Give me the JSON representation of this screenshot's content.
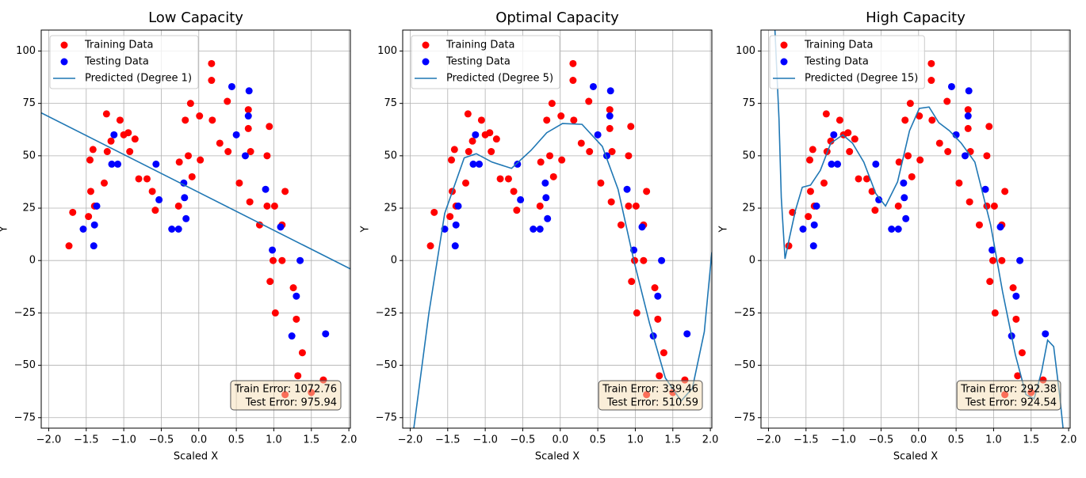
{
  "chart_data": [
    {
      "type": "scatter",
      "title": "Low Capacity",
      "xlabel": "Scaled X",
      "ylabel": "Y",
      "xlim": [
        -2.1,
        2.02
      ],
      "ylim": [
        -80,
        110
      ],
      "xticks": [
        {
          "value": -2,
          "label": "−2.0"
        },
        {
          "value": -1.5,
          "label": "−1.5"
        },
        {
          "value": -1,
          "label": "−1.0"
        },
        {
          "value": -0.5,
          "label": "−0.5"
        },
        {
          "value": 0,
          "label": "0.0"
        },
        {
          "value": 0.5,
          "label": "0.5"
        },
        {
          "value": 1,
          "label": "1.0"
        },
        {
          "value": 1.5,
          "label": "1.5"
        },
        {
          "value": 2,
          "label": "2.0"
        }
      ],
      "yticks": [
        {
          "value": -75,
          "label": "−75"
        },
        {
          "value": -50,
          "label": "−50"
        },
        {
          "value": -25,
          "label": "−25"
        },
        0,
        25,
        50,
        75,
        100
      ],
      "grid": true,
      "legend": "upper left",
      "series": [
        {
          "name": "Training Data",
          "color": "#ff0000",
          "kind": "points",
          "x": [
            -1.73,
            -1.68,
            -1.47,
            -1.45,
            -1.44,
            -1.41,
            -1.39,
            -1.26,
            -1.23,
            -1.22,
            -1.17,
            -1.05,
            -1.0,
            -0.94,
            -0.92,
            -0.85,
            -0.8,
            -0.69,
            -0.62,
            -0.58,
            -0.27,
            -0.26,
            -0.18,
            -0.14,
            -0.11,
            -0.09,
            0.01,
            0.02,
            0.17,
            0.17,
            0.18,
            0.28,
            0.38,
            0.39,
            0.54,
            0.66,
            0.66,
            0.68,
            0.69,
            0.81,
            0.91,
            0.94,
            0.95,
            0.91,
            0.99,
            1.01,
            1.02,
            1.11,
            1.15,
            1.11,
            1.15,
            1.26,
            1.3,
            1.32,
            1.38,
            1.5,
            1.66
          ],
          "values": [
            7,
            23,
            21,
            48,
            33,
            53,
            26,
            37,
            70,
            52,
            57,
            67,
            60,
            61,
            52,
            58,
            39,
            39,
            33,
            24,
            26,
            47,
            67,
            50,
            75,
            40,
            69,
            48,
            94,
            86,
            67,
            56,
            76,
            52,
            37,
            72,
            63,
            28,
            52,
            17,
            50,
            64,
            -10,
            26,
            0,
            26,
            -25,
            0,
            33,
            17,
            -64,
            -13,
            -28,
            -55,
            -44,
            -63,
            -57
          ]
        },
        {
          "name": "Testing Data",
          "color": "#0000ff",
          "kind": "points",
          "x": [
            -1.54,
            -1.4,
            -1.39,
            -1.36,
            -1.13,
            -1.16,
            -1.08,
            -0.57,
            -0.53,
            -0.36,
            -0.27,
            -0.2,
            -0.19,
            -0.17,
            0.44,
            0.5,
            0.62,
            0.66,
            0.67,
            0.89,
            0.98,
            1.09,
            1.24,
            1.3,
            1.35,
            1.69
          ],
          "values": [
            15,
            7,
            17,
            26,
            60,
            46,
            46,
            46,
            29,
            15,
            15,
            37,
            30,
            20,
            83,
            60,
            50,
            69,
            81,
            34,
            5,
            16,
            -36,
            -17,
            0,
            -35
          ]
        },
        {
          "name": "Predicted (Degree 1)",
          "color": "#1f77b4",
          "kind": "line",
          "x": [
            -2.1,
            2.02
          ],
          "values": [
            70.5,
            -4
          ]
        }
      ],
      "annotations": [
        "Train Error: 1072.76",
        "Test Error: 975.94"
      ]
    },
    {
      "type": "scatter",
      "title": "Optimal Capacity",
      "xlabel": "Scaled X",
      "ylabel": "Y",
      "xlim": [
        -2.1,
        2.02
      ],
      "ylim": [
        -80,
        110
      ],
      "xticks": [
        {
          "value": -2,
          "label": "−2.0"
        },
        {
          "value": -1.5,
          "label": "−1.5"
        },
        {
          "value": -1,
          "label": "−1.0"
        },
        {
          "value": -0.5,
          "label": "−0.5"
        },
        {
          "value": 0,
          "label": "0.0"
        },
        {
          "value": 0.5,
          "label": "0.5"
        },
        {
          "value": 1,
          "label": "1.0"
        },
        {
          "value": 1.5,
          "label": "1.5"
        },
        {
          "value": 2,
          "label": "2.0"
        }
      ],
      "yticks": [
        {
          "value": -75,
          "label": "−75"
        },
        {
          "value": -50,
          "label": "−50"
        },
        {
          "value": -25,
          "label": "−25"
        },
        0,
        25,
        50,
        75,
        100
      ],
      "grid": true,
      "legend": "upper left",
      "series": [
        {
          "name": "Training Data",
          "color": "#ff0000",
          "kind": "points",
          "x": [
            -1.73,
            -1.68,
            -1.47,
            -1.45,
            -1.44,
            -1.41,
            -1.39,
            -1.26,
            -1.23,
            -1.22,
            -1.17,
            -1.05,
            -1.0,
            -0.94,
            -0.92,
            -0.85,
            -0.8,
            -0.69,
            -0.62,
            -0.58,
            -0.27,
            -0.26,
            -0.18,
            -0.14,
            -0.11,
            -0.09,
            0.01,
            0.02,
            0.17,
            0.17,
            0.18,
            0.28,
            0.38,
            0.39,
            0.54,
            0.66,
            0.66,
            0.68,
            0.69,
            0.81,
            0.91,
            0.94,
            0.95,
            0.91,
            0.99,
            1.01,
            1.02,
            1.11,
            1.15,
            1.11,
            1.15,
            1.26,
            1.3,
            1.32,
            1.38,
            1.5,
            1.66
          ],
          "values": [
            7,
            23,
            21,
            48,
            33,
            53,
            26,
            37,
            70,
            52,
            57,
            67,
            60,
            61,
            52,
            58,
            39,
            39,
            33,
            24,
            26,
            47,
            67,
            50,
            75,
            40,
            69,
            48,
            94,
            86,
            67,
            56,
            76,
            52,
            37,
            72,
            63,
            28,
            52,
            17,
            50,
            64,
            -10,
            26,
            0,
            26,
            -25,
            0,
            33,
            17,
            -64,
            -13,
            -28,
            -55,
            -44,
            -63,
            -57
          ]
        },
        {
          "name": "Testing Data",
          "color": "#0000ff",
          "kind": "points",
          "x": [
            -1.54,
            -1.4,
            -1.39,
            -1.36,
            -1.13,
            -1.16,
            -1.08,
            -0.57,
            -0.53,
            -0.36,
            -0.27,
            -0.2,
            -0.19,
            -0.17,
            0.44,
            0.5,
            0.62,
            0.66,
            0.67,
            0.89,
            0.98,
            1.09,
            1.24,
            1.3,
            1.35,
            1.69
          ],
          "values": [
            15,
            7,
            17,
            26,
            60,
            46,
            46,
            46,
            29,
            15,
            15,
            37,
            30,
            20,
            83,
            60,
            50,
            69,
            81,
            34,
            5,
            16,
            -36,
            -17,
            0,
            -35
          ]
        },
        {
          "name": "Predicted (Degree 5)",
          "color": "#1f77b4",
          "kind": "line",
          "x": [
            -1.97,
            -1.75,
            -1.54,
            -1.28,
            -1.12,
            -0.91,
            -0.65,
            -0.39,
            -0.18,
            0.03,
            0.29,
            0.56,
            0.77,
            0.98,
            1.19,
            1.4,
            1.61,
            1.76,
            1.92,
            2.02
          ],
          "values": [
            -85,
            -25,
            22.5,
            49,
            51,
            47,
            44,
            52.6,
            61,
            65.4,
            65,
            54.5,
            34,
            0,
            -30,
            -56,
            -67,
            -61,
            -34,
            4
          ]
        }
      ],
      "annotations": [
        "Train Error: 339.46",
        "Test Error: 510.59"
      ]
    },
    {
      "type": "scatter",
      "title": "High Capacity",
      "xlabel": "Scaled X",
      "ylabel": "Y",
      "xlim": [
        -2.1,
        2.02
      ],
      "ylim": [
        -80,
        110
      ],
      "xticks": [
        {
          "value": -2,
          "label": "−2.0"
        },
        {
          "value": -1.5,
          "label": "−1.5"
        },
        {
          "value": -1,
          "label": "−1.0"
        },
        {
          "value": -0.5,
          "label": "−0.5"
        },
        {
          "value": 0,
          "label": "0.0"
        },
        {
          "value": 0.5,
          "label": "0.5"
        },
        {
          "value": 1,
          "label": "1.0"
        },
        {
          "value": 1.5,
          "label": "1.5"
        },
        {
          "value": 2,
          "label": "2.0"
        }
      ],
      "yticks": [
        {
          "value": -75,
          "label": "−75"
        },
        {
          "value": -50,
          "label": "−50"
        },
        {
          "value": -25,
          "label": "−25"
        },
        0,
        25,
        50,
        75,
        100
      ],
      "grid": true,
      "legend": "upper left",
      "series": [
        {
          "name": "Training Data",
          "color": "#ff0000",
          "kind": "points",
          "x": [
            -1.73,
            -1.68,
            -1.47,
            -1.45,
            -1.44,
            -1.41,
            -1.39,
            -1.26,
            -1.23,
            -1.22,
            -1.17,
            -1.05,
            -1.0,
            -0.94,
            -0.92,
            -0.85,
            -0.8,
            -0.69,
            -0.62,
            -0.58,
            -0.27,
            -0.26,
            -0.18,
            -0.14,
            -0.11,
            -0.09,
            0.01,
            0.02,
            0.17,
            0.17,
            0.18,
            0.28,
            0.38,
            0.39,
            0.54,
            0.66,
            0.66,
            0.68,
            0.69,
            0.81,
            0.91,
            0.94,
            0.95,
            0.91,
            0.99,
            1.01,
            1.02,
            1.11,
            1.15,
            1.11,
            1.15,
            1.26,
            1.3,
            1.32,
            1.38,
            1.5,
            1.66
          ],
          "values": [
            7,
            23,
            21,
            48,
            33,
            53,
            26,
            37,
            70,
            52,
            57,
            67,
            60,
            61,
            52,
            58,
            39,
            39,
            33,
            24,
            26,
            47,
            67,
            50,
            75,
            40,
            69,
            48,
            94,
            86,
            67,
            56,
            76,
            52,
            37,
            72,
            63,
            28,
            52,
            17,
            50,
            64,
            -10,
            26,
            0,
            26,
            -25,
            0,
            33,
            17,
            -64,
            -13,
            -28,
            -55,
            -44,
            -63,
            -57
          ]
        },
        {
          "name": "Testing Data",
          "color": "#0000ff",
          "kind": "points",
          "x": [
            -1.54,
            -1.4,
            -1.39,
            -1.36,
            -1.13,
            -1.16,
            -1.08,
            -0.57,
            -0.53,
            -0.36,
            -0.27,
            -0.2,
            -0.19,
            -0.17,
            0.44,
            0.5,
            0.62,
            0.66,
            0.67,
            0.89,
            0.98,
            1.09,
            1.24,
            1.3,
            1.35,
            1.69
          ],
          "values": [
            15,
            7,
            17,
            26,
            60,
            46,
            46,
            46,
            29,
            15,
            15,
            37,
            30,
            20,
            83,
            60,
            50,
            69,
            81,
            34,
            5,
            16,
            -36,
            -17,
            0,
            -35
          ]
        },
        {
          "name": "Predicted (Degree 15)",
          "color": "#1f77b4",
          "kind": "line",
          "x": [
            -1.92,
            -1.86,
            -1.83,
            -1.78,
            -1.72,
            -1.64,
            -1.55,
            -1.44,
            -1.31,
            -1.17,
            -1.01,
            -0.88,
            -0.73,
            -0.57,
            -0.44,
            -0.28,
            -0.12,
            0.01,
            0.14,
            0.27,
            0.41,
            0.57,
            0.75,
            0.96,
            1.12,
            1.29,
            1.43,
            1.54,
            1.64,
            1.72,
            1.8,
            1.88,
            1.94
          ],
          "values": [
            115,
            67.7,
            30,
            0.8,
            11,
            24,
            35,
            36,
            43,
            56,
            60,
            56,
            47,
            32,
            26,
            37.6,
            62,
            72.6,
            73.3,
            65.8,
            62,
            56,
            47,
            17,
            -15,
            -45,
            -64,
            -66,
            -53,
            -38,
            -41,
            -64,
            -85
          ]
        }
      ],
      "annotations": [
        "Train Error: 292.38",
        "Test Error: 924.54"
      ]
    }
  ]
}
